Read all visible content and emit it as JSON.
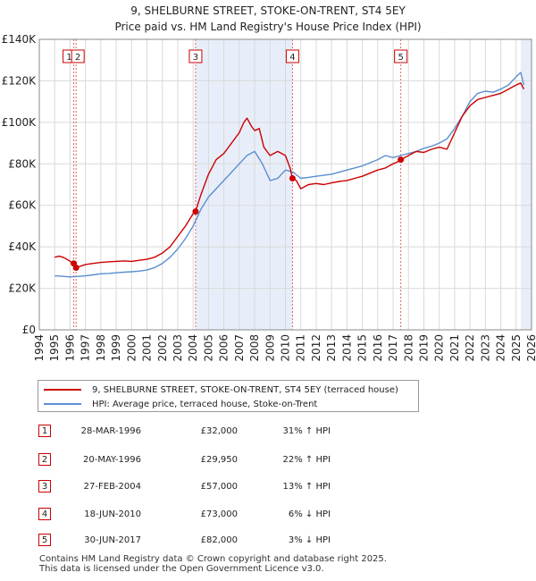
{
  "chart_data": {
    "type": "line",
    "title": "9, SHELBURNE STREET, STOKE-ON-TRENT, ST4 5EY",
    "subtitle": "Price paid vs. HM Land Registry's House Price Index (HPI)",
    "xlim": [
      1994,
      2026
    ],
    "ylim": [
      0,
      140000
    ],
    "x_ticks": [
      "1994",
      "1995",
      "1996",
      "1997",
      "1998",
      "1999",
      "2000",
      "2001",
      "2002",
      "2003",
      "2004",
      "2005",
      "2006",
      "2007",
      "2008",
      "2009",
      "2010",
      "2011",
      "2012",
      "2013",
      "2014",
      "2015",
      "2016",
      "2017",
      "2018",
      "2019",
      "2020",
      "2021",
      "2022",
      "2023",
      "2024",
      "2025",
      "2026"
    ],
    "y_ticks": [
      {
        "value": 0,
        "label": "£0"
      },
      {
        "value": 20000,
        "label": "£20K"
      },
      {
        "value": 40000,
        "label": "£40K"
      },
      {
        "value": 60000,
        "label": "£60K"
      },
      {
        "value": 80000,
        "label": "£80K"
      },
      {
        "value": 100000,
        "label": "£100K"
      },
      {
        "value": 120000,
        "label": "£120K"
      },
      {
        "value": 140000,
        "label": "£140K"
      }
    ],
    "series": [
      {
        "name": "9, SHELBURNE STREET, STOKE-ON-TRENT, ST4 5EY (terraced house)",
        "color": "#cc0000",
        "x": [
          1995.0,
          1995.3,
          1995.6,
          1995.9,
          1996.1,
          1996.24,
          1996.3,
          1996.39,
          1996.6,
          1997.0,
          1997.5,
          1998.0,
          1998.5,
          1999.0,
          1999.5,
          2000.0,
          2000.5,
          2001.0,
          2001.5,
          2002.0,
          2002.5,
          2003.0,
          2003.5,
          2004.0,
          2004.16,
          2004.5,
          2005.0,
          2005.5,
          2006.0,
          2006.5,
          2007.0,
          2007.3,
          2007.5,
          2007.8,
          2008.0,
          2008.3,
          2008.6,
          2009.0,
          2009.5,
          2010.0,
          2010.3,
          2010.46,
          2010.7,
          2011.0,
          2011.5,
          2012.0,
          2012.5,
          2013.0,
          2013.5,
          2014.0,
          2014.5,
          2015.0,
          2015.5,
          2016.0,
          2016.5,
          2017.0,
          2017.3,
          2017.5,
          2018.0,
          2018.5,
          2019.0,
          2019.5,
          2020.0,
          2020.5,
          2021.0,
          2021.5,
          2022.0,
          2022.5,
          2023.0,
          2023.5,
          2024.0,
          2024.5,
          2025.0,
          2025.3,
          2025.5
        ],
        "values": [
          35000,
          35500,
          34800,
          33500,
          32500,
          32000,
          31000,
          29950,
          30500,
          31500,
          32000,
          32500,
          32800,
          33000,
          33200,
          33000,
          33500,
          34000,
          35000,
          37000,
          40000,
          45000,
          50000,
          56000,
          57000,
          65000,
          75000,
          82000,
          85000,
          90000,
          95000,
          100000,
          102000,
          98000,
          96000,
          97000,
          88000,
          84000,
          86000,
          84000,
          78000,
          73000,
          72000,
          68000,
          70000,
          70500,
          70000,
          70800,
          71500,
          72000,
          73000,
          74000,
          75500,
          77000,
          78000,
          80000,
          81000,
          82000,
          84000,
          86000,
          85500,
          87000,
          88000,
          87000,
          95000,
          103000,
          108000,
          111000,
          112000,
          113000,
          114000,
          116000,
          118000,
          119000,
          116000
        ]
      },
      {
        "name": "HPI: Average price, terraced house, Stoke-on-Trent",
        "color": "#5b8fd0",
        "x": [
          1995.0,
          1995.5,
          1996.0,
          1996.5,
          1997.0,
          1997.5,
          1998.0,
          1998.5,
          1999.0,
          1999.5,
          2000.0,
          2000.5,
          2001.0,
          2001.5,
          2002.0,
          2002.5,
          2003.0,
          2003.5,
          2004.0,
          2004.5,
          2005.0,
          2005.5,
          2006.0,
          2006.5,
          2007.0,
          2007.5,
          2008.0,
          2008.5,
          2009.0,
          2009.5,
          2010.0,
          2010.5,
          2011.0,
          2011.5,
          2012.0,
          2012.5,
          2013.0,
          2013.5,
          2014.0,
          2014.5,
          2015.0,
          2015.5,
          2016.0,
          2016.5,
          2017.0,
          2017.5,
          2018.0,
          2018.5,
          2019.0,
          2019.5,
          2020.0,
          2020.5,
          2021.0,
          2021.5,
          2022.0,
          2022.5,
          2023.0,
          2023.5,
          2024.0,
          2024.5,
          2025.0,
          2025.3,
          2025.5
        ],
        "values": [
          26000,
          25800,
          25500,
          25700,
          26000,
          26500,
          27000,
          27200,
          27500,
          27800,
          28000,
          28300,
          28800,
          30000,
          32000,
          35000,
          39000,
          44000,
          50000,
          58000,
          64000,
          68000,
          72000,
          76000,
          80000,
          84000,
          86000,
          80000,
          72000,
          73000,
          77000,
          76000,
          73000,
          73500,
          74000,
          74500,
          75000,
          76000,
          77000,
          78000,
          79000,
          80500,
          82000,
          84000,
          83000,
          84000,
          85000,
          86000,
          87500,
          88500,
          90000,
          92000,
          97000,
          103000,
          110000,
          114000,
          115000,
          114500,
          116000,
          118000,
          122000,
          124000,
          118000
        ]
      }
    ],
    "sales": [
      {
        "num": "1",
        "x": 1996.24,
        "value": 32000
      },
      {
        "num": "2",
        "x": 1996.39,
        "value": 29950
      },
      {
        "num": "3",
        "x": 2004.16,
        "value": 57000
      },
      {
        "num": "4",
        "x": 2010.46,
        "value": 73000
      },
      {
        "num": "5",
        "x": 2017.5,
        "value": 82000
      }
    ]
  },
  "legend": {
    "property": "9, SHELBURNE STREET, STOKE-ON-TRENT, ST4 5EY (terraced house)",
    "hpi": "HPI: Average price, terraced house, Stoke-on-Trent"
  },
  "sales_table": [
    {
      "num": "1",
      "date": "28-MAR-1996",
      "price": "£32,000",
      "hpi": "31% ↑ HPI"
    },
    {
      "num": "2",
      "date": "20-MAY-1996",
      "price": "£29,950",
      "hpi": "22% ↑ HPI"
    },
    {
      "num": "3",
      "date": "27-FEB-2004",
      "price": "£57,000",
      "hpi": "13% ↑ HPI"
    },
    {
      "num": "4",
      "date": "18-JUN-2010",
      "price": "£73,000",
      "hpi": "6% ↓ HPI"
    },
    {
      "num": "5",
      "date": "30-JUN-2017",
      "price": "£82,000",
      "hpi": "3% ↓ HPI"
    }
  ],
  "footer": {
    "line1": "Contains HM Land Registry data © Crown copyright and database right 2025.",
    "line2": "This data is licensed under the Open Government Licence v3.0."
  }
}
